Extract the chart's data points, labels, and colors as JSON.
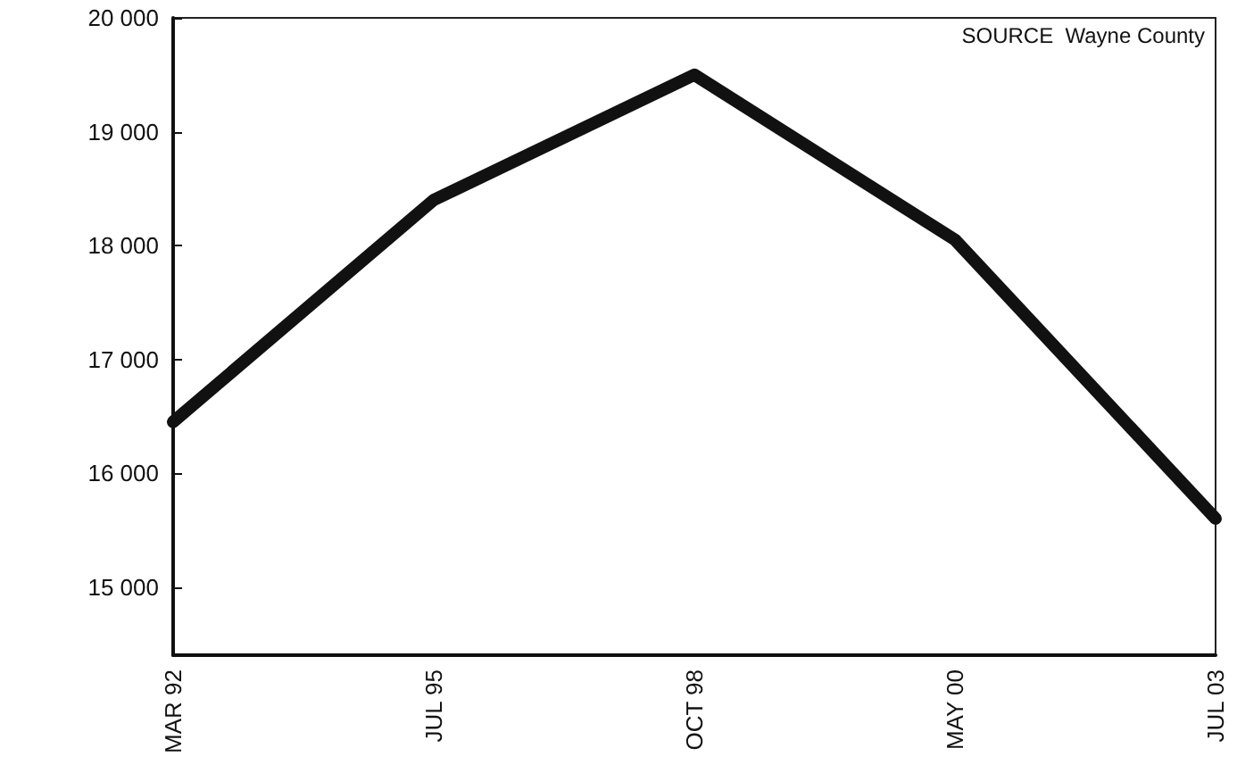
{
  "chart_data": {
    "type": "line",
    "categories": [
      "MAR 92",
      "JUL 95",
      "OCT 98",
      "MAY 00",
      "JUL 03"
    ],
    "series": [
      {
        "color": "#111111",
        "values": [
          16450,
          18400,
          19500,
          18050,
          15600
        ]
      }
    ],
    "ylim": [
      14400,
      20000
    ],
    "yticks": [
      15000,
      16000,
      17000,
      18000,
      19000,
      20000
    ],
    "grid": false,
    "line_style": "solid",
    "annotations": [
      "SOURCE  Wayne County"
    ]
  }
}
